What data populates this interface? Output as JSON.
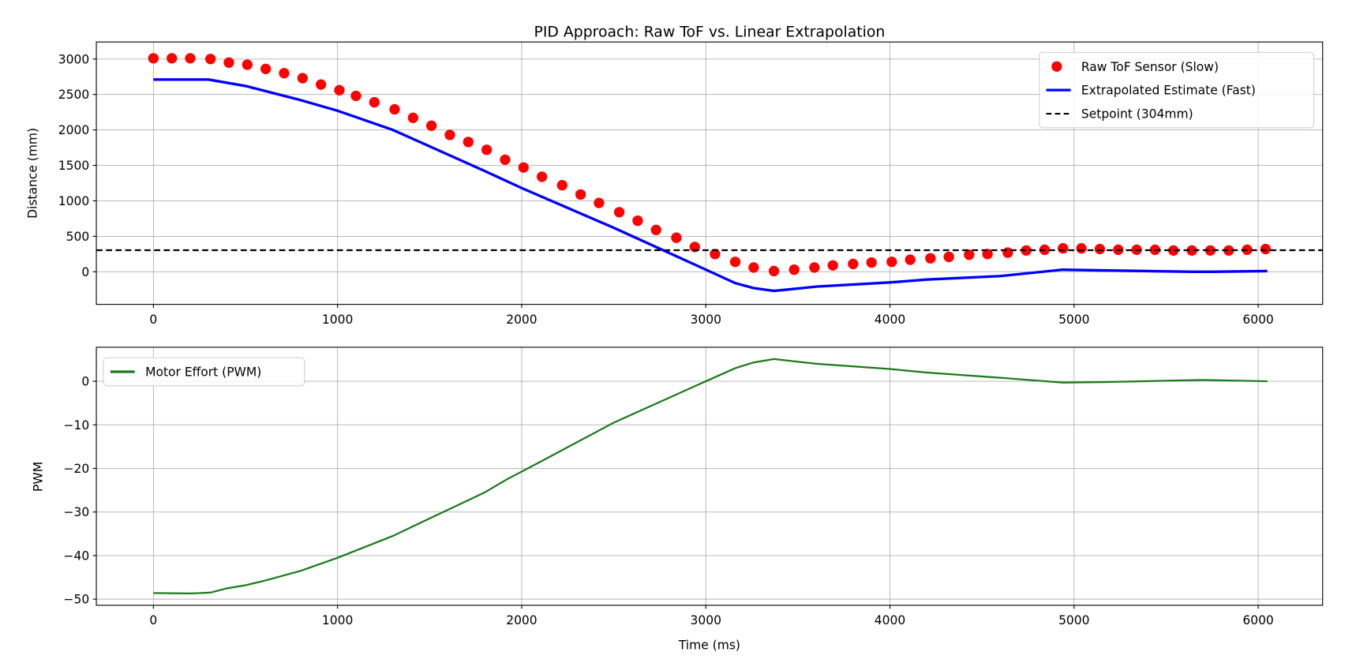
{
  "chart_data": [
    {
      "type": "scatter+line",
      "title": "PID Approach: Raw ToF vs. Linear Extrapolation",
      "xlabel": "",
      "ylabel": "Distance (mm)",
      "xlim": [
        -310,
        6350
      ],
      "ylim": [
        -460,
        3240
      ],
      "xticks": [
        0,
        1000,
        2000,
        3000,
        4000,
        5000,
        6000
      ],
      "yticks": [
        0,
        500,
        1000,
        1500,
        2000,
        2500,
        3000
      ],
      "grid": true,
      "legend": "top-right",
      "series": [
        {
          "name": "Raw ToF Sensor (Slow)",
          "kind": "scatter",
          "color": "#ff0000",
          "x": [
            0,
            100,
            200,
            310,
            410,
            510,
            610,
            710,
            810,
            910,
            1010,
            1100,
            1200,
            1310,
            1410,
            1510,
            1610,
            1710,
            1810,
            1910,
            2010,
            2110,
            2220,
            2320,
            2420,
            2530,
            2630,
            2730,
            2840,
            2940,
            3050,
            3160,
            3260,
            3370,
            3480,
            3590,
            3690,
            3800,
            3900,
            4010,
            4110,
            4220,
            4320,
            4430,
            4530,
            4640,
            4740,
            4840,
            4940,
            5040,
            5140,
            5240,
            5340,
            5440,
            5540,
            5640,
            5740,
            5840,
            5940,
            6040
          ],
          "y": [
            3010,
            3010,
            3010,
            3000,
            2950,
            2920,
            2860,
            2800,
            2730,
            2640,
            2560,
            2480,
            2390,
            2290,
            2170,
            2060,
            1930,
            1830,
            1720,
            1580,
            1470,
            1340,
            1220,
            1090,
            970,
            840,
            720,
            590,
            480,
            350,
            250,
            140,
            60,
            10,
            30,
            60,
            90,
            110,
            130,
            140,
            170,
            190,
            210,
            240,
            250,
            270,
            300,
            310,
            330,
            330,
            320,
            310,
            310,
            310,
            300,
            300,
            300,
            300,
            310,
            320
          ]
        },
        {
          "name": "Extrapolated Estimate (Fast)",
          "kind": "line",
          "color": "#0000ff",
          "x": [
            0,
            300,
            500,
            800,
            1000,
            1300,
            1800,
            2000,
            2500,
            3000,
            3160,
            3260,
            3370,
            3600,
            4000,
            4200,
            4600,
            4940,
            5150,
            5640,
            5750,
            6050
          ],
          "y": [
            2710,
            2710,
            2620,
            2420,
            2270,
            2000,
            1420,
            1180,
            620,
            30,
            -160,
            -230,
            -270,
            -210,
            -150,
            -110,
            -60,
            30,
            20,
            0,
            0,
            10
          ]
        },
        {
          "name": "Setpoint (304mm)",
          "kind": "hline",
          "color": "#000000",
          "y": 304
        }
      ]
    },
    {
      "type": "line",
      "title": "",
      "xlabel": "Time (ms)",
      "ylabel": "PWM",
      "xlim": [
        -310,
        6350
      ],
      "ylim": [
        -51.4,
        7.8
      ],
      "xticks": [
        0,
        1000,
        2000,
        3000,
        4000,
        5000,
        6000
      ],
      "yticks": [
        -50,
        -40,
        -30,
        -20,
        -10,
        0
      ],
      "ytick_labels": [
        "−50",
        "−40",
        "−30",
        "−20",
        "−10",
        "0"
      ],
      "grid": true,
      "legend": "top-left",
      "series": [
        {
          "name": "Motor Effort (PWM)",
          "kind": "line",
          "color": "#1a7a1a",
          "x": [
            0,
            200,
            310,
            400,
            500,
            600,
            800,
            1000,
            1300,
            1500,
            1800,
            1920,
            2100,
            2500,
            3000,
            3160,
            3260,
            3370,
            3600,
            4000,
            4200,
            4600,
            4940,
            5150,
            5700,
            6050
          ],
          "y": [
            -48.6,
            -48.7,
            -48.5,
            -47.5,
            -46.8,
            -45.8,
            -43.5,
            -40.5,
            -35.5,
            -31.5,
            -25.5,
            -22.5,
            -18.5,
            -9.5,
            0,
            3,
            4.3,
            5.1,
            4,
            2.8,
            2,
            0.8,
            -0.3,
            -0.2,
            0.3,
            0
          ]
        }
      ]
    }
  ]
}
